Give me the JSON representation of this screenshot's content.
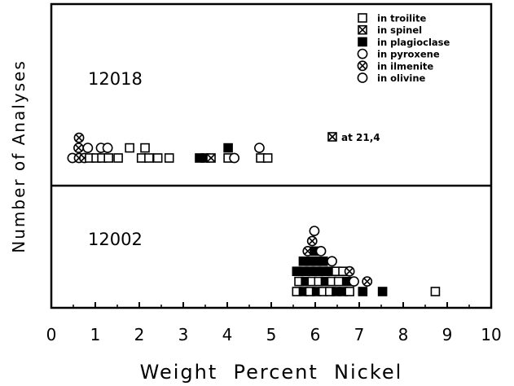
{
  "chart_data": {
    "type": "scatter",
    "subtype": "stacked-dot-histogram",
    "xlabel": "Weight  Percent  Nickel",
    "ylabel": "Number of Analyses",
    "xlim": [
      0,
      10
    ],
    "x_ticks": [
      "0",
      "1",
      "2",
      "3",
      "4",
      "5",
      "6",
      "7",
      "8",
      "9",
      "10"
    ],
    "grid": false,
    "legend_position": "top-right",
    "legend": [
      {
        "key": "troilite",
        "label": "in troilite",
        "marker": "open-square"
      },
      {
        "key": "spinel",
        "label": "in spinel",
        "marker": "crossed-square"
      },
      {
        "key": "plagioclase",
        "label": "in plagioclase",
        "marker": "filled-square"
      },
      {
        "key": "pyroxene",
        "label": "in pyroxene",
        "marker": "open-circle"
      },
      {
        "key": "ilmenite",
        "label": "in ilmenite",
        "marker": "crossed-circle"
      },
      {
        "key": "olivine",
        "label": "in olivine",
        "marker": "open-circle"
      }
    ],
    "panels": [
      {
        "name": "12018",
        "annotation": "at 21,4",
        "points": [
          {
            "x": 0.48,
            "level": 0,
            "kind": "pyroxene"
          },
          {
            "x": 0.63,
            "level": 0,
            "kind": "ilmenite"
          },
          {
            "x": 0.75,
            "level": 0,
            "kind": "ilmenite"
          },
          {
            "x": 0.87,
            "level": 0,
            "kind": "troilite"
          },
          {
            "x": 1.02,
            "level": 0,
            "kind": "troilite"
          },
          {
            "x": 1.15,
            "level": 0,
            "kind": "troilite"
          },
          {
            "x": 1.3,
            "level": 0,
            "kind": "troilite"
          },
          {
            "x": 1.52,
            "level": 0,
            "kind": "troilite"
          },
          {
            "x": 2.05,
            "level": 0,
            "kind": "troilite"
          },
          {
            "x": 2.22,
            "level": 0,
            "kind": "troilite"
          },
          {
            "x": 2.42,
            "level": 0,
            "kind": "troilite"
          },
          {
            "x": 2.68,
            "level": 0,
            "kind": "troilite"
          },
          {
            "x": 3.37,
            "level": 0,
            "kind": "plagioclase"
          },
          {
            "x": 3.5,
            "level": 0,
            "kind": "plagioclase"
          },
          {
            "x": 3.63,
            "level": 0,
            "kind": "spinel"
          },
          {
            "x": 4.02,
            "level": 0,
            "kind": "troilite"
          },
          {
            "x": 4.16,
            "level": 0,
            "kind": "pyroxene"
          },
          {
            "x": 4.76,
            "level": 0,
            "kind": "troilite"
          },
          {
            "x": 4.92,
            "level": 0,
            "kind": "troilite"
          },
          {
            "x": 0.62,
            "level": 1,
            "kind": "ilmenite"
          },
          {
            "x": 0.83,
            "level": 1,
            "kind": "pyroxene"
          },
          {
            "x": 1.13,
            "level": 1,
            "kind": "pyroxene"
          },
          {
            "x": 1.28,
            "level": 1,
            "kind": "pyroxene"
          },
          {
            "x": 1.78,
            "level": 1,
            "kind": "troilite"
          },
          {
            "x": 2.13,
            "level": 1,
            "kind": "troilite"
          },
          {
            "x": 4.02,
            "level": 1,
            "kind": "plagioclase"
          },
          {
            "x": 4.73,
            "level": 1,
            "kind": "pyroxene"
          },
          {
            "x": 0.63,
            "level": 2,
            "kind": "ilmenite"
          }
        ]
      },
      {
        "name": "12002",
        "points": [
          {
            "x": 5.58,
            "level": 0,
            "kind": "troilite"
          },
          {
            "x": 5.73,
            "level": 0,
            "kind": "plagioclase"
          },
          {
            "x": 5.88,
            "level": 0,
            "kind": "troilite"
          },
          {
            "x": 6.03,
            "level": 0,
            "kind": "plagioclase"
          },
          {
            "x": 6.18,
            "level": 0,
            "kind": "troilite"
          },
          {
            "x": 6.33,
            "level": 0,
            "kind": "troilite"
          },
          {
            "x": 6.48,
            "level": 0,
            "kind": "plagioclase"
          },
          {
            "x": 6.63,
            "level": 0,
            "kind": "plagioclase"
          },
          {
            "x": 6.78,
            "level": 0,
            "kind": "troilite"
          },
          {
            "x": 7.08,
            "level": 0,
            "kind": "plagioclase"
          },
          {
            "x": 7.53,
            "level": 0,
            "kind": "plagioclase"
          },
          {
            "x": 8.73,
            "level": 0,
            "kind": "troilite"
          },
          {
            "x": 5.63,
            "level": 1,
            "kind": "troilite"
          },
          {
            "x": 5.78,
            "level": 1,
            "kind": "plagioclase"
          },
          {
            "x": 5.93,
            "level": 1,
            "kind": "troilite"
          },
          {
            "x": 6.08,
            "level": 1,
            "kind": "troilite"
          },
          {
            "x": 6.23,
            "level": 1,
            "kind": "plagioclase"
          },
          {
            "x": 6.38,
            "level": 1,
            "kind": "troilite"
          },
          {
            "x": 6.53,
            "level": 1,
            "kind": "troilite"
          },
          {
            "x": 6.73,
            "level": 1,
            "kind": "plagioclase"
          },
          {
            "x": 6.88,
            "level": 1,
            "kind": "pyroxene"
          },
          {
            "x": 7.18,
            "level": 1,
            "kind": "ilmenite"
          },
          {
            "x": 5.58,
            "level": 2,
            "kind": "plagioclase"
          },
          {
            "x": 5.73,
            "level": 2,
            "kind": "plagioclase"
          },
          {
            "x": 5.88,
            "level": 2,
            "kind": "plagioclase"
          },
          {
            "x": 6.03,
            "level": 2,
            "kind": "plagioclase"
          },
          {
            "x": 6.18,
            "level": 2,
            "kind": "plagioclase"
          },
          {
            "x": 6.33,
            "level": 2,
            "kind": "plagioclase"
          },
          {
            "x": 6.48,
            "level": 2,
            "kind": "troilite"
          },
          {
            "x": 6.63,
            "level": 2,
            "kind": "troilite"
          },
          {
            "x": 6.78,
            "level": 2,
            "kind": "ilmenite"
          },
          {
            "x": 5.73,
            "level": 3,
            "kind": "plagioclase"
          },
          {
            "x": 5.88,
            "level": 3,
            "kind": "plagioclase"
          },
          {
            "x": 6.03,
            "level": 3,
            "kind": "plagioclase"
          },
          {
            "x": 6.18,
            "level": 3,
            "kind": "plagioclase"
          },
          {
            "x": 6.38,
            "level": 3,
            "kind": "pyroxene"
          },
          {
            "x": 5.83,
            "level": 4,
            "kind": "ilmenite"
          },
          {
            "x": 5.98,
            "level": 4,
            "kind": "plagioclase"
          },
          {
            "x": 6.13,
            "level": 4,
            "kind": "pyroxene"
          },
          {
            "x": 5.93,
            "level": 5,
            "kind": "ilmenite"
          },
          {
            "x": 5.98,
            "level": 6,
            "kind": "pyroxene"
          }
        ]
      }
    ]
  }
}
